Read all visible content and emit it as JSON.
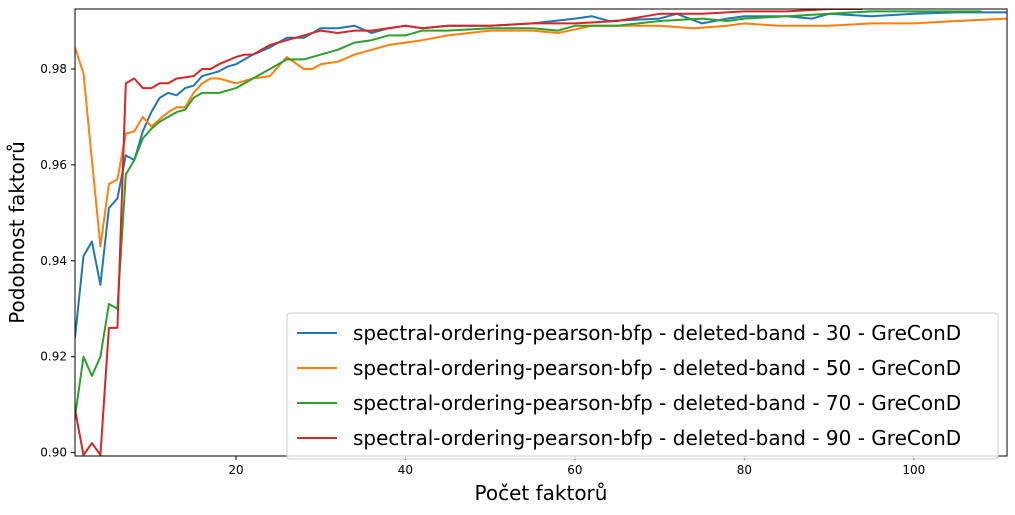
{
  "chart_data": {
    "type": "line",
    "title": "",
    "xlabel": "Počet faktorů",
    "ylabel": "Podobnost faktorů",
    "xlim": [
      1,
      111
    ],
    "ylim": [
      0.8993,
      0.9925
    ],
    "xticks": [
      20,
      40,
      60,
      80,
      100
    ],
    "yticks": [
      0.9,
      0.92,
      0.94,
      0.96,
      0.98
    ],
    "ytick_labels": [
      "0.90",
      "0.92",
      "0.94",
      "0.96",
      "0.98"
    ],
    "grid": false,
    "legend_position": "lower-right",
    "series": [
      {
        "name": "spectral-ordering-pearson-bfp - deleted-band - 30 - GreConD",
        "color": "#1f77b4",
        "points": [
          [
            1,
            0.924
          ],
          [
            2,
            0.941
          ],
          [
            3,
            0.944
          ],
          [
            4,
            0.935
          ],
          [
            5,
            0.951
          ],
          [
            6,
            0.953
          ],
          [
            7,
            0.962
          ],
          [
            8,
            0.961
          ],
          [
            9,
            0.967
          ],
          [
            10,
            0.971
          ],
          [
            11,
            0.974
          ],
          [
            12,
            0.975
          ],
          [
            13,
            0.9745
          ],
          [
            14,
            0.976
          ],
          [
            15,
            0.9765
          ],
          [
            16,
            0.9785
          ],
          [
            17,
            0.979
          ],
          [
            18,
            0.9795
          ],
          [
            19,
            0.9805
          ],
          [
            20,
            0.981
          ],
          [
            22,
            0.983
          ],
          [
            24,
            0.9845
          ],
          [
            26,
            0.9865
          ],
          [
            28,
            0.9865
          ],
          [
            30,
            0.9885
          ],
          [
            32,
            0.9885
          ],
          [
            34,
            0.989
          ],
          [
            36,
            0.9875
          ],
          [
            38,
            0.9885
          ],
          [
            40,
            0.989
          ],
          [
            42,
            0.9885
          ],
          [
            45,
            0.989
          ],
          [
            50,
            0.989
          ],
          [
            55,
            0.9895
          ],
          [
            60,
            0.9905
          ],
          [
            62,
            0.991
          ],
          [
            64,
            0.99
          ],
          [
            70,
            0.9905
          ],
          [
            72,
            0.9915
          ],
          [
            75,
            0.9895
          ],
          [
            78,
            0.9905
          ],
          [
            80,
            0.991
          ],
          [
            85,
            0.991
          ],
          [
            88,
            0.9905
          ],
          [
            90,
            0.9915
          ],
          [
            95,
            0.991
          ],
          [
            100,
            0.9915
          ],
          [
            105,
            0.9918
          ],
          [
            111,
            0.9918
          ]
        ]
      },
      {
        "name": "spectral-ordering-pearson-bfp - deleted-band - 50 - GreConD",
        "color": "#ff7f0e",
        "points": [
          [
            1,
            0.9845
          ],
          [
            2,
            0.979
          ],
          [
            3,
            0.961
          ],
          [
            4,
            0.943
          ],
          [
            5,
            0.956
          ],
          [
            6,
            0.957
          ],
          [
            7,
            0.9665
          ],
          [
            8,
            0.967
          ],
          [
            9,
            0.97
          ],
          [
            10,
            0.968
          ],
          [
            11,
            0.9695
          ],
          [
            12,
            0.971
          ],
          [
            13,
            0.972
          ],
          [
            14,
            0.972
          ],
          [
            15,
            0.975
          ],
          [
            16,
            0.977
          ],
          [
            17,
            0.978
          ],
          [
            18,
            0.978
          ],
          [
            20,
            0.977
          ],
          [
            22,
            0.978
          ],
          [
            24,
            0.9785
          ],
          [
            26,
            0.9825
          ],
          [
            28,
            0.98
          ],
          [
            29,
            0.98
          ],
          [
            30,
            0.981
          ],
          [
            32,
            0.9815
          ],
          [
            34,
            0.983
          ],
          [
            36,
            0.984
          ],
          [
            38,
            0.985
          ],
          [
            40,
            0.9855
          ],
          [
            42,
            0.986
          ],
          [
            45,
            0.987
          ],
          [
            50,
            0.988
          ],
          [
            55,
            0.988
          ],
          [
            58,
            0.9875
          ],
          [
            62,
            0.989
          ],
          [
            66,
            0.989
          ],
          [
            70,
            0.989
          ],
          [
            74,
            0.9885
          ],
          [
            78,
            0.989
          ],
          [
            80,
            0.9895
          ],
          [
            84,
            0.989
          ],
          [
            90,
            0.989
          ],
          [
            95,
            0.9895
          ],
          [
            100,
            0.9895
          ],
          [
            105,
            0.99
          ],
          [
            111,
            0.9905
          ]
        ]
      },
      {
        "name": "spectral-ordering-pearson-bfp - deleted-band - 70 - GreConD",
        "color": "#2ca02c",
        "points": [
          [
            1,
            0.9075
          ],
          [
            2,
            0.92
          ],
          [
            3,
            0.916
          ],
          [
            4,
            0.92
          ],
          [
            5,
            0.931
          ],
          [
            6,
            0.93
          ],
          [
            7,
            0.958
          ],
          [
            8,
            0.961
          ],
          [
            9,
            0.9655
          ],
          [
            10,
            0.9675
          ],
          [
            11,
            0.969
          ],
          [
            12,
            0.97
          ],
          [
            13,
            0.971
          ],
          [
            14,
            0.9715
          ],
          [
            15,
            0.974
          ],
          [
            16,
            0.975
          ],
          [
            18,
            0.975
          ],
          [
            20,
            0.976
          ],
          [
            22,
            0.978
          ],
          [
            24,
            0.98
          ],
          [
            26,
            0.982
          ],
          [
            28,
            0.982
          ],
          [
            30,
            0.983
          ],
          [
            32,
            0.984
          ],
          [
            34,
            0.9855
          ],
          [
            36,
            0.986
          ],
          [
            38,
            0.987
          ],
          [
            40,
            0.987
          ],
          [
            42,
            0.988
          ],
          [
            45,
            0.988
          ],
          [
            50,
            0.9885
          ],
          [
            55,
            0.9885
          ],
          [
            58,
            0.988
          ],
          [
            60,
            0.989
          ],
          [
            65,
            0.989
          ],
          [
            70,
            0.99
          ],
          [
            75,
            0.9905
          ],
          [
            78,
            0.99
          ],
          [
            80,
            0.9905
          ],
          [
            85,
            0.991
          ],
          [
            90,
            0.9915
          ],
          [
            95,
            0.992
          ],
          [
            100,
            0.992
          ],
          [
            105,
            0.992
          ],
          [
            108,
            0.992
          ]
        ]
      },
      {
        "name": "spectral-ordering-pearson-bfp - deleted-band - 90 - GreConD",
        "color": "#d62728",
        "points": [
          [
            1,
            0.909
          ],
          [
            2,
            0.8995
          ],
          [
            3,
            0.902
          ],
          [
            4,
            0.8995
          ],
          [
            5,
            0.926
          ],
          [
            6,
            0.926
          ],
          [
            7,
            0.977
          ],
          [
            8,
            0.978
          ],
          [
            9,
            0.976
          ],
          [
            10,
            0.976
          ],
          [
            11,
            0.977
          ],
          [
            12,
            0.977
          ],
          [
            13,
            0.978
          ],
          [
            15,
            0.9785
          ],
          [
            16,
            0.98
          ],
          [
            17,
            0.98
          ],
          [
            18,
            0.981
          ],
          [
            20,
            0.9825
          ],
          [
            21,
            0.983
          ],
          [
            22,
            0.983
          ],
          [
            24,
            0.985
          ],
          [
            26,
            0.986
          ],
          [
            28,
            0.987
          ],
          [
            30,
            0.988
          ],
          [
            32,
            0.9875
          ],
          [
            34,
            0.988
          ],
          [
            36,
            0.988
          ],
          [
            38,
            0.9885
          ],
          [
            40,
            0.989
          ],
          [
            42,
            0.9885
          ],
          [
            45,
            0.989
          ],
          [
            50,
            0.989
          ],
          [
            55,
            0.9895
          ],
          [
            60,
            0.9895
          ],
          [
            65,
            0.99
          ],
          [
            70,
            0.9915
          ],
          [
            75,
            0.9915
          ],
          [
            80,
            0.992
          ],
          [
            85,
            0.992
          ],
          [
            90,
            0.9925
          ],
          [
            94,
            0.9925
          ]
        ]
      }
    ]
  }
}
